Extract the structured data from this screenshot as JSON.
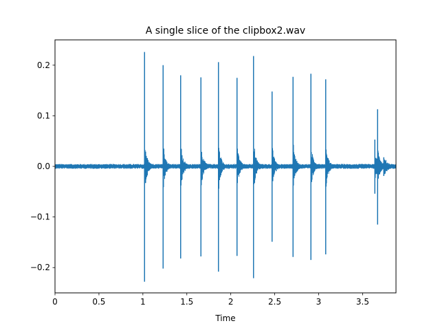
{
  "chart_data": {
    "type": "line",
    "title": "A single slice of the clipbox2.wav",
    "xlabel": "Time",
    "ylabel": "",
    "xlim": [
      0,
      3.88
    ],
    "ylim": [
      -0.25,
      0.25
    ],
    "x_ticks": [
      0,
      0.5,
      1.0,
      1.5,
      2.0,
      2.5,
      3.0,
      3.5
    ],
    "x_tick_labels": [
      "0",
      "0.5",
      "1",
      "1.5",
      "2",
      "2.5",
      "3",
      "3.5"
    ],
    "y_ticks": [
      -0.2,
      -0.1,
      0.0,
      0.1,
      0.2
    ],
    "y_tick_labels": [
      "−0.2",
      "−0.1",
      "0.0",
      "0.1",
      "0.2"
    ],
    "grid": false,
    "series": [
      {
        "color": "#1f77b4",
        "noise_amplitude": 0.004,
        "transients": [
          {
            "t": 1.02,
            "max": 0.226,
            "min": -0.228
          },
          {
            "t": 1.23,
            "max": 0.2,
            "min": -0.202
          },
          {
            "t": 1.43,
            "max": 0.18,
            "min": -0.182
          },
          {
            "t": 1.66,
            "max": 0.176,
            "min": -0.178
          },
          {
            "t": 1.86,
            "max": 0.206,
            "min": -0.208
          },
          {
            "t": 2.07,
            "max": 0.175,
            "min": -0.177
          },
          {
            "t": 2.26,
            "max": 0.218,
            "min": -0.221
          },
          {
            "t": 2.47,
            "max": 0.148,
            "min": -0.149
          },
          {
            "t": 2.71,
            "max": 0.177,
            "min": -0.179
          },
          {
            "t": 2.91,
            "max": 0.183,
            "min": -0.185
          },
          {
            "t": 3.08,
            "max": 0.172,
            "min": -0.174
          },
          {
            "t": 3.64,
            "max": 0.053,
            "min": -0.054
          },
          {
            "t": 3.67,
            "max": 0.113,
            "min": -0.115
          },
          {
            "t": 3.74,
            "max": 0.018,
            "min": -0.019
          }
        ]
      }
    ]
  }
}
